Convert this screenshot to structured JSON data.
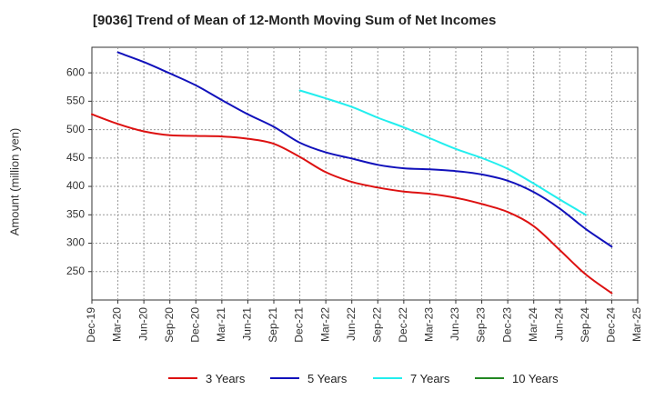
{
  "chart_data": {
    "type": "line",
    "title": "[9036]  Trend of Mean of 12-Month Moving Sum of Net Incomes",
    "xlabel": "",
    "ylabel": "Amount (million yen)",
    "ylim": [
      200,
      645
    ],
    "yticks": [
      250,
      300,
      350,
      400,
      450,
      500,
      550,
      600
    ],
    "x_tick_labels": [
      "Dec-19",
      "Mar-20",
      "Jun-20",
      "Sep-20",
      "Dec-20",
      "Mar-21",
      "Jun-21",
      "Sep-21",
      "Dec-21",
      "Mar-22",
      "Jun-22",
      "Sep-22",
      "Dec-22",
      "Mar-23",
      "Jun-23",
      "Sep-23",
      "Dec-23",
      "Mar-24",
      "Jun-24",
      "Sep-24",
      "Dec-24",
      "Mar-25"
    ],
    "grid": true,
    "legend_position": "bottom",
    "series": [
      {
        "name": "3 Years",
        "color": "#dd1111",
        "start_index": 0,
        "values": [
          527,
          510,
          497,
          490,
          489,
          488,
          484,
          475,
          452,
          425,
          408,
          398,
          391,
          387,
          380,
          369,
          355,
          330,
          288,
          245,
          212
        ]
      },
      {
        "name": "5 Years",
        "color": "#1111bb",
        "start_index": 1,
        "values": [
          636,
          619,
          599,
          578,
          552,
          527,
          505,
          477,
          460,
          449,
          438,
          432,
          430,
          427,
          421,
          410,
          390,
          361,
          325,
          294
        ]
      },
      {
        "name": "7 Years",
        "color": "#22eeee",
        "start_index": 8,
        "values": [
          569,
          555,
          540,
          521,
          504,
          485,
          466,
          450,
          431,
          405,
          377,
          350
        ]
      },
      {
        "name": "10 Years",
        "color": "#228822",
        "start_index": 0,
        "values": []
      }
    ]
  }
}
